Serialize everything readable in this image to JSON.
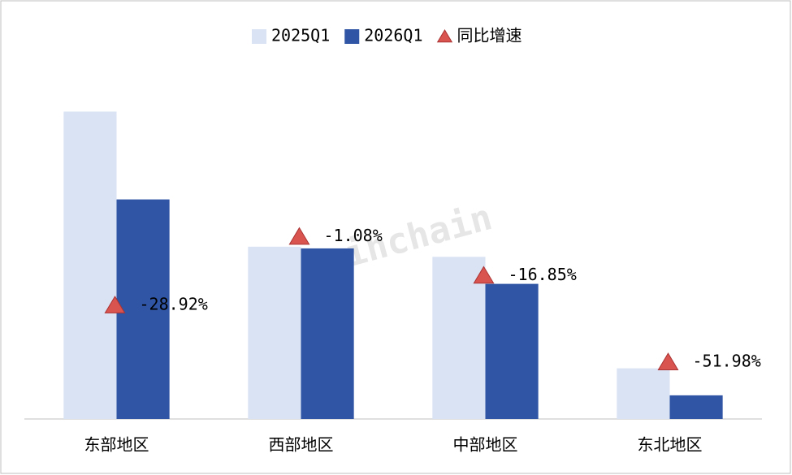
{
  "chart_data": {
    "type": "bar",
    "categories": [
      "东部地区",
      "西部地区",
      "中部地区",
      "东北地区"
    ],
    "series": [
      {
        "name": "2025Q1",
        "color": "#dae3f3",
        "values": [
          91,
          51,
          48,
          15
        ]
      },
      {
        "name": "2026Q1",
        "color": "#2f55a4",
        "values": [
          65,
          50.5,
          40,
          7
        ]
      },
      {
        "name": "同比增速",
        "color": "#d9534f",
        "axis": "y2",
        "marker": "triangle",
        "values": [
          -28.92,
          -1.08,
          -16.85,
          -51.98
        ],
        "value_labels": [
          "-28.92%",
          "-1.08%",
          "-16.85%",
          "-51.98%"
        ]
      }
    ],
    "ylim": [
      0,
      100
    ],
    "y2lim": [
      -75,
      62
    ],
    "legend": "top",
    "watermark": "Joinchain"
  }
}
